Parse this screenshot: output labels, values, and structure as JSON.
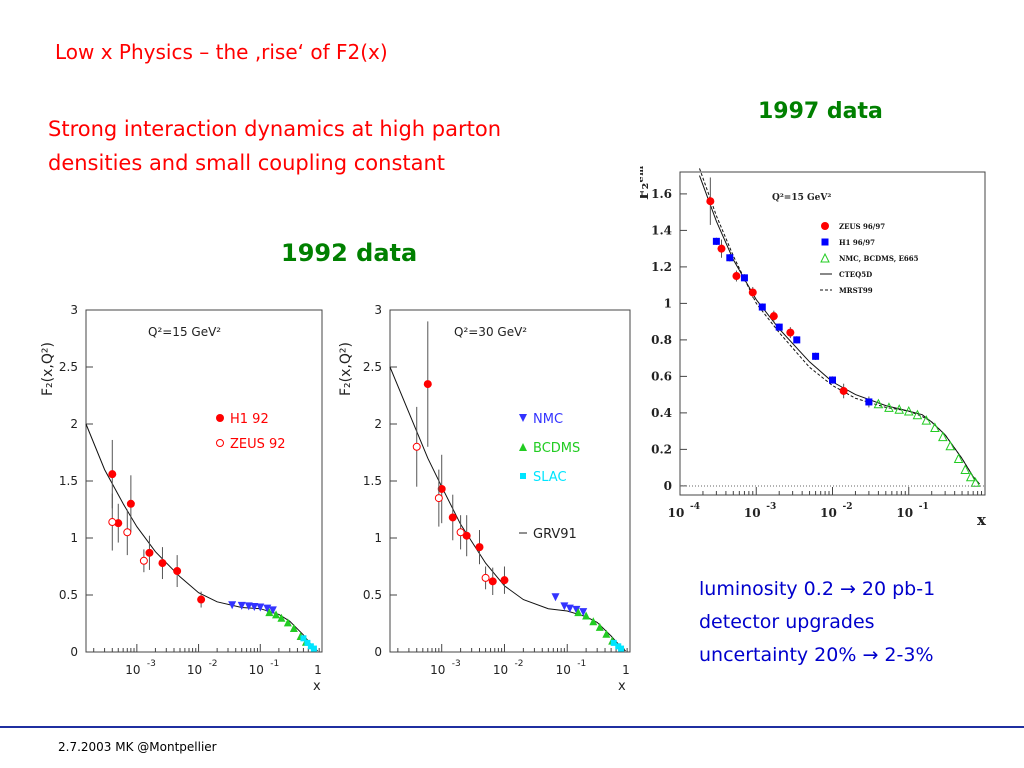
{
  "slide": {
    "title": "Low x Physics – the ‚rise‘ of F2(x)",
    "subtitle_line1": "Strong interaction dynamics at high parton",
    "subtitle_line2": "densities and small coupling constant",
    "label_1992": "1992 data",
    "label_1997": "1997 data",
    "info_lines": [
      "luminosity 0.2 → 20 pb-1",
      "detector upgrades",
      "uncertainty 20% → 2-3%"
    ],
    "footer": "2.7.2003 MK @Montpellier"
  },
  "colors": {
    "title_red": "#ff0000",
    "label_green": "#008000",
    "info_blue": "#0000cc",
    "footer_line": "#1f2fa0",
    "h1": "#0000ff",
    "zeus": "#ff0000",
    "nmc_blue": "#3333ff",
    "bcdms_green": "#22cc22",
    "slac_cyan": "#00e5ff"
  },
  "chart_data": [
    {
      "type": "scatter",
      "annotation": "Q²=15 GeV²",
      "ylabel": "F₂(x,Q²)",
      "xlabel": "x",
      "x_scale": "log",
      "xlim": [
        0.00015,
        1
      ],
      "ylim": [
        0,
        3
      ],
      "y_ticks": [
        "0",
        "0.5",
        "1",
        "1.5",
        "2",
        "2.5",
        "3"
      ],
      "x_ticks": [
        {
          "pos": 0.001,
          "label": "10",
          "exp": "-3"
        },
        {
          "pos": 0.01,
          "label": "10",
          "exp": "-2"
        },
        {
          "pos": 0.1,
          "label": "10",
          "exp": "-1"
        },
        {
          "pos": 1,
          "label": "1",
          "exp": ""
        }
      ],
      "legend": [
        "H1 92",
        "ZEUS 92"
      ],
      "series": [
        {
          "name": "H1 92",
          "marker": "filled-circle",
          "color": "#ff0000",
          "points": [
            [
              0.0004,
              1.56,
              0.3
            ],
            [
              0.0005,
              1.13,
              0.17
            ],
            [
              0.0008,
              1.3,
              0.25
            ],
            [
              0.0016,
              0.87,
              0.15
            ],
            [
              0.0026,
              0.78,
              0.14
            ],
            [
              0.0045,
              0.71,
              0.14
            ],
            [
              0.011,
              0.46,
              0.07
            ]
          ]
        },
        {
          "name": "ZEUS 92",
          "marker": "open-circle",
          "color": "#ff0000",
          "points": [
            [
              0.0004,
              1.14,
              0.25
            ],
            [
              0.0007,
              1.05,
              0.2
            ],
            [
              0.0013,
              0.8,
              0.1
            ]
          ]
        },
        {
          "name": "NMC",
          "marker": "triangle-down",
          "color": "#3333ff",
          "points": [
            [
              0.035,
              0.41
            ],
            [
              0.05,
              0.405
            ],
            [
              0.065,
              0.4
            ],
            [
              0.08,
              0.395
            ],
            [
              0.1,
              0.39
            ],
            [
              0.13,
              0.38
            ],
            [
              0.16,
              0.365
            ]
          ]
        },
        {
          "name": "BCDMS",
          "marker": "triangle-up",
          "color": "#22cc22",
          "points": [
            [
              0.14,
              0.35
            ],
            [
              0.18,
              0.33
            ],
            [
              0.22,
              0.3
            ],
            [
              0.28,
              0.26
            ],
            [
              0.35,
              0.21
            ],
            [
              0.45,
              0.14
            ],
            [
              0.55,
              0.09
            ]
          ]
        },
        {
          "name": "SLAC",
          "marker": "square",
          "color": "#00e5ff",
          "points": [
            [
              0.5,
              0.12
            ],
            [
              0.58,
              0.08
            ],
            [
              0.66,
              0.05
            ],
            [
              0.74,
              0.03
            ]
          ]
        }
      ],
      "curve": [
        [
          0.00015,
          2.0
        ],
        [
          0.0003,
          1.6
        ],
        [
          0.0006,
          1.3
        ],
        [
          0.001,
          1.1
        ],
        [
          0.002,
          0.88
        ],
        [
          0.005,
          0.66
        ],
        [
          0.01,
          0.52
        ],
        [
          0.02,
          0.44
        ],
        [
          0.05,
          0.39
        ],
        [
          0.1,
          0.38
        ],
        [
          0.2,
          0.33
        ],
        [
          0.3,
          0.27
        ],
        [
          0.5,
          0.15
        ],
        [
          0.7,
          0.05
        ],
        [
          0.85,
          0.01
        ]
      ]
    },
    {
      "type": "scatter",
      "annotation": "Q²=30 GeV²",
      "ylabel": "F₂(x,Q²)",
      "xlabel": "x",
      "x_scale": "log",
      "xlim": [
        0.00015,
        1
      ],
      "ylim": [
        0,
        3
      ],
      "y_ticks": [
        "0",
        "0.5",
        "1",
        "1.5",
        "2",
        "2.5",
        "3"
      ],
      "x_ticks": [
        {
          "pos": 0.001,
          "label": "10",
          "exp": "-3"
        },
        {
          "pos": 0.01,
          "label": "10",
          "exp": "-2"
        },
        {
          "pos": 0.1,
          "label": "10",
          "exp": "-1"
        },
        {
          "pos": 1,
          "label": "1",
          "exp": ""
        }
      ],
      "legend": [
        "NMC",
        "BCDMS",
        "SLAC",
        "GRV91"
      ],
      "series": [
        {
          "name": "H1 92",
          "marker": "filled-circle",
          "color": "#ff0000",
          "points": [
            [
              0.0006,
              2.35,
              0.55
            ],
            [
              0.001,
              1.43,
              0.3
            ],
            [
              0.0015,
              1.18,
              0.2
            ],
            [
              0.0025,
              1.02,
              0.18
            ],
            [
              0.004,
              0.92,
              0.15
            ],
            [
              0.0065,
              0.62,
              0.12
            ],
            [
              0.01,
              0.63,
              0.12
            ]
          ]
        },
        {
          "name": "ZEUS 92",
          "marker": "open-circle",
          "color": "#ff0000",
          "points": [
            [
              0.0004,
              1.8,
              0.35
            ],
            [
              0.0009,
              1.35,
              0.25
            ],
            [
              0.002,
              1.05,
              0.15
            ],
            [
              0.005,
              0.65,
              0.1
            ]
          ]
        },
        {
          "name": "NMC",
          "marker": "triangle-down",
          "color": "#3333ff",
          "points": [
            [
              0.065,
              0.48
            ],
            [
              0.09,
              0.4
            ],
            [
              0.11,
              0.38
            ],
            [
              0.14,
              0.37
            ],
            [
              0.18,
              0.35
            ]
          ]
        },
        {
          "name": "BCDMS",
          "marker": "triangle-up",
          "color": "#22cc22",
          "points": [
            [
              0.15,
              0.35
            ],
            [
              0.2,
              0.32
            ],
            [
              0.26,
              0.27
            ],
            [
              0.33,
              0.22
            ],
            [
              0.42,
              0.16
            ],
            [
              0.52,
              0.1
            ]
          ]
        },
        {
          "name": "SLAC",
          "marker": "square",
          "color": "#00e5ff",
          "points": [
            [
              0.55,
              0.08
            ],
            [
              0.65,
              0.05
            ],
            [
              0.72,
              0.03
            ]
          ]
        }
      ],
      "curve": [
        [
          0.00015,
          2.5
        ],
        [
          0.0003,
          2.1
        ],
        [
          0.0006,
          1.7
        ],
        [
          0.001,
          1.45
        ],
        [
          0.002,
          1.12
        ],
        [
          0.005,
          0.78
        ],
        [
          0.01,
          0.58
        ],
        [
          0.02,
          0.46
        ],
        [
          0.05,
          0.38
        ],
        [
          0.1,
          0.36
        ],
        [
          0.2,
          0.31
        ],
        [
          0.3,
          0.26
        ],
        [
          0.5,
          0.14
        ],
        [
          0.7,
          0.05
        ],
        [
          0.85,
          0.01
        ]
      ]
    },
    {
      "type": "scatter",
      "annotation": "Q²=15 GeV²",
      "ylabel": "F₂ᵉᵐ",
      "xlabel": "x",
      "x_scale": "log",
      "xlim": [
        0.0001,
        1
      ],
      "ylim": [
        -0.05,
        1.72
      ],
      "y_ticks": [
        "0",
        "0.2",
        "0.4",
        "0.6",
        "0.8",
        "1",
        "1.2",
        "1.4",
        "1.6"
      ],
      "x_ticks": [
        {
          "pos": 0.0001,
          "label": "10",
          "exp": "-4"
        },
        {
          "pos": 0.001,
          "label": "10",
          "exp": "-3"
        },
        {
          "pos": 0.01,
          "label": "10",
          "exp": "-2"
        },
        {
          "pos": 0.1,
          "label": "10",
          "exp": "-1"
        }
      ],
      "legend": [
        "ZEUS 96/97",
        "H1 96/97",
        "NMC, BCDMS, E665",
        "CTEQ5D",
        "MRST99"
      ],
      "series": [
        {
          "name": "ZEUS 96/97",
          "marker": "filled-circle",
          "color": "#ff0000",
          "points": [
            [
              0.00025,
              1.56,
              0.13
            ],
            [
              0.00035,
              1.3,
              0.05
            ],
            [
              0.00055,
              1.15,
              0.03
            ],
            [
              0.0009,
              1.06,
              0.03
            ],
            [
              0.0017,
              0.93,
              0.03
            ],
            [
              0.0028,
              0.84,
              0.03
            ],
            [
              0.014,
              0.52,
              0.04
            ]
          ]
        },
        {
          "name": "H1 96/97",
          "marker": "filled-square",
          "color": "#0000ff",
          "points": [
            [
              0.0003,
              1.34,
              0.02
            ],
            [
              0.00045,
              1.25,
              0.02
            ],
            [
              0.0007,
              1.14,
              0.02
            ],
            [
              0.0012,
              0.98,
              0.02
            ],
            [
              0.002,
              0.87,
              0.02
            ],
            [
              0.0034,
              0.8,
              0.02
            ],
            [
              0.006,
              0.71,
              0.02
            ],
            [
              0.01,
              0.58,
              0.02
            ],
            [
              0.03,
              0.46,
              0.03
            ]
          ]
        },
        {
          "name": "NMC, BCDMS, E665",
          "marker": "open-triangle",
          "color": "#22cc22",
          "points": [
            [
              0.04,
              0.45
            ],
            [
              0.055,
              0.43
            ],
            [
              0.075,
              0.42
            ],
            [
              0.1,
              0.41
            ],
            [
              0.13,
              0.39
            ],
            [
              0.17,
              0.36
            ],
            [
              0.22,
              0.32
            ],
            [
              0.28,
              0.27
            ],
            [
              0.35,
              0.22
            ],
            [
              0.45,
              0.15
            ],
            [
              0.55,
              0.09
            ],
            [
              0.65,
              0.05
            ],
            [
              0.75,
              0.02
            ]
          ]
        }
      ],
      "curves": [
        {
          "name": "CTEQ5D",
          "style": "solid",
          "points": [
            [
              0.00018,
              1.7
            ],
            [
              0.0003,
              1.45
            ],
            [
              0.0005,
              1.24
            ],
            [
              0.001,
              1.02
            ],
            [
              0.002,
              0.86
            ],
            [
              0.005,
              0.68
            ],
            [
              0.01,
              0.57
            ],
            [
              0.02,
              0.5
            ],
            [
              0.05,
              0.44
            ],
            [
              0.1,
              0.41
            ],
            [
              0.15,
              0.39
            ],
            [
              0.2,
              0.35
            ],
            [
              0.3,
              0.28
            ],
            [
              0.5,
              0.15
            ],
            [
              0.7,
              0.05
            ],
            [
              0.85,
              0.01
            ]
          ]
        },
        {
          "name": "MRST99",
          "style": "dashed",
          "points": [
            [
              0.00018,
              1.74
            ],
            [
              0.0003,
              1.48
            ],
            [
              0.0005,
              1.26
            ],
            [
              0.001,
              1.0
            ],
            [
              0.002,
              0.84
            ],
            [
              0.005,
              0.65
            ],
            [
              0.01,
              0.55
            ],
            [
              0.02,
              0.48
            ],
            [
              0.05,
              0.43
            ],
            [
              0.1,
              0.41
            ],
            [
              0.15,
              0.38
            ],
            [
              0.2,
              0.35
            ],
            [
              0.3,
              0.28
            ],
            [
              0.5,
              0.15
            ],
            [
              0.7,
              0.05
            ],
            [
              0.85,
              0.01
            ]
          ]
        }
      ]
    }
  ]
}
